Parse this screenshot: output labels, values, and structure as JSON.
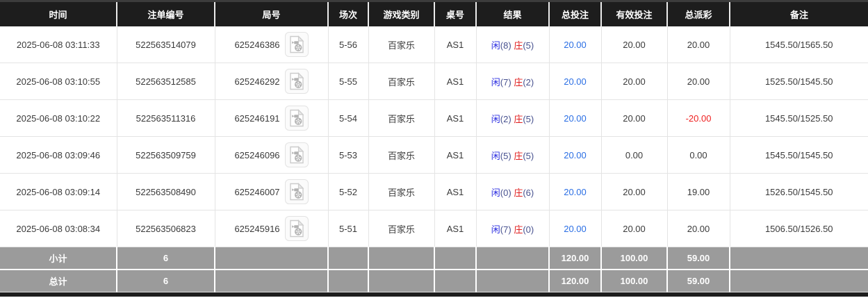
{
  "colors": {
    "header_bg": "#1d1d1d",
    "footer_bg": "#9b9b9b",
    "player_blue": "#2a2ce0",
    "banker_red": "#e01e1e",
    "score_slate": "#47518f",
    "link_blue": "#2a6ee4",
    "negative_red": "#ef2020"
  },
  "icons": {
    "round_video_icon": "video-file-icon"
  },
  "table": {
    "columns": [
      {
        "key": "time",
        "label": "时间"
      },
      {
        "key": "bet_id",
        "label": "注单编号"
      },
      {
        "key": "round_id",
        "label": "局号"
      },
      {
        "key": "session",
        "label": "场次"
      },
      {
        "key": "game_type",
        "label": "游戏类别"
      },
      {
        "key": "table_no",
        "label": "桌号"
      },
      {
        "key": "result",
        "label": "结果"
      },
      {
        "key": "total_bet",
        "label": "总投注"
      },
      {
        "key": "valid_bet",
        "label": "有效投注"
      },
      {
        "key": "total_payout",
        "label": "总派彩"
      },
      {
        "key": "remark",
        "label": "备注"
      }
    ],
    "rows": [
      {
        "time": "2025-06-08 03:11:33",
        "bet_id": "522563514079",
        "round_id": "625246386",
        "session": "5-56",
        "game_type": "百家乐",
        "table_no": "AS1",
        "result": {
          "player_label": "闲",
          "player_score": "(8)",
          "banker_label": "庄",
          "banker_score": "(5)"
        },
        "total_bet": "20.00",
        "valid_bet": "20.00",
        "total_payout": "20.00",
        "remark": "1545.50/1565.50"
      },
      {
        "time": "2025-06-08 03:10:55",
        "bet_id": "522563512585",
        "round_id": "625246292",
        "session": "5-55",
        "game_type": "百家乐",
        "table_no": "AS1",
        "result": {
          "player_label": "闲",
          "player_score": "(7)",
          "banker_label": "庄",
          "banker_score": "(2)"
        },
        "total_bet": "20.00",
        "valid_bet": "20.00",
        "total_payout": "20.00",
        "remark": "1525.50/1545.50"
      },
      {
        "time": "2025-06-08 03:10:22",
        "bet_id": "522563511316",
        "round_id": "625246191",
        "session": "5-54",
        "game_type": "百家乐",
        "table_no": "AS1",
        "result": {
          "player_label": "闲",
          "player_score": "(2)",
          "banker_label": "庄",
          "banker_score": "(5)"
        },
        "total_bet": "20.00",
        "valid_bet": "20.00",
        "total_payout": "-20.00",
        "remark": "1545.50/1525.50"
      },
      {
        "time": "2025-06-08 03:09:46",
        "bet_id": "522563509759",
        "round_id": "625246096",
        "session": "5-53",
        "game_type": "百家乐",
        "table_no": "AS1",
        "result": {
          "player_label": "闲",
          "player_score": "(5)",
          "banker_label": "庄",
          "banker_score": "(5)"
        },
        "total_bet": "20.00",
        "valid_bet": "0.00",
        "total_payout": "0.00",
        "remark": "1545.50/1545.50"
      },
      {
        "time": "2025-06-08 03:09:14",
        "bet_id": "522563508490",
        "round_id": "625246007",
        "session": "5-52",
        "game_type": "百家乐",
        "table_no": "AS1",
        "result": {
          "player_label": "闲",
          "player_score": "(0)",
          "banker_label": "庄",
          "banker_score": "(6)"
        },
        "total_bet": "20.00",
        "valid_bet": "20.00",
        "total_payout": "19.00",
        "remark": "1526.50/1545.50"
      },
      {
        "time": "2025-06-08 03:08:34",
        "bet_id": "522563506823",
        "round_id": "625245916",
        "session": "5-51",
        "game_type": "百家乐",
        "table_no": "AS1",
        "result": {
          "player_label": "闲",
          "player_score": "(7)",
          "banker_label": "庄",
          "banker_score": "(0)"
        },
        "total_bet": "20.00",
        "valid_bet": "20.00",
        "total_payout": "20.00",
        "remark": "1506.50/1526.50"
      }
    ],
    "footer": [
      {
        "label": "小计",
        "count": "6",
        "total_bet": "120.00",
        "valid_bet": "100.00",
        "total_payout": "59.00"
      },
      {
        "label": "总计",
        "count": "6",
        "total_bet": "120.00",
        "valid_bet": "100.00",
        "total_payout": "59.00"
      }
    ]
  }
}
